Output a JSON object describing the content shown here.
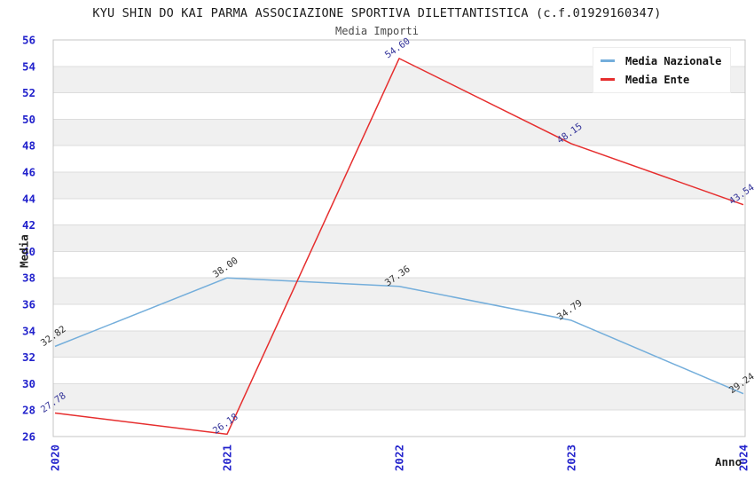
{
  "title": "KYU SHIN DO KAI PARMA ASSOCIAZIONE SPORTIVA DILETTANTISTICA (c.f.01929160347)",
  "subtitle": "Media Importi",
  "chart_data": {
    "type": "line",
    "categories": [
      "2020",
      "2021",
      "2022",
      "2023",
      "2024"
    ],
    "series": [
      {
        "name": "Media Nazionale",
        "values": [
          32.82,
          38.0,
          37.36,
          34.79,
          29.24
        ],
        "color": "#74aedb",
        "label_color": "#333333"
      },
      {
        "name": "Media Ente",
        "values": [
          27.78,
          26.18,
          54.6,
          48.15,
          43.54
        ],
        "color": "#e62e2e",
        "label_color": "#333399"
      }
    ],
    "xlabel": "Anno",
    "ylabel": "Media",
    "ylim": [
      26,
      56
    ],
    "ytick_step": 2,
    "grid": true,
    "legend_position": "top-right",
    "tick_color": "#2222cc",
    "band_color": "#f0f0f0",
    "grid_color": "#dcdcdc",
    "border_color": "#c4c4c4"
  }
}
